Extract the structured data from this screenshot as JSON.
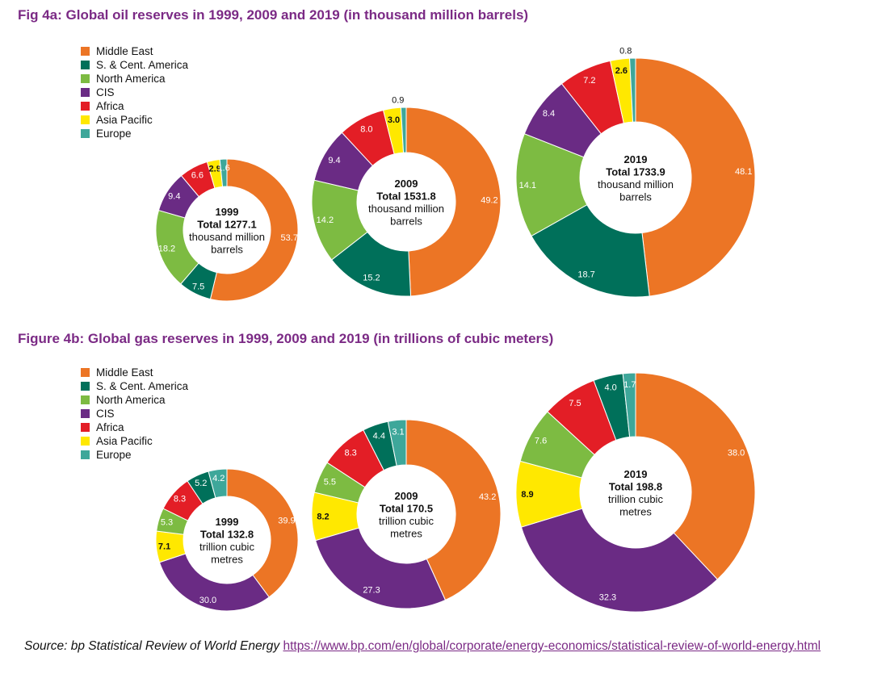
{
  "legend_colors": {
    "Middle East": "#ec7525",
    "S. & Cent. America": "#00705a",
    "North America": "#7dbb42",
    "CIS": "#6a2b84",
    "Africa": "#e31e26",
    "Asia Pacific": "#ffe800",
    "Europe": "#3ea79a"
  },
  "source": {
    "lead": "Source: bp Statistical Review of World Energy ",
    "link": "https://www.bp.com/en/global/corporate/energy-economics/statistical-review-of-world-energy.html"
  },
  "chart_data": [
    {
      "type": "pie",
      "title": "Fig 4a: Global oil reserves in 1999, 2009 and 2019 (in thousand million barrels)",
      "legend": [
        "Middle East",
        "S. & Cent. America",
        "North America",
        "CIS",
        "Africa",
        "Asia Pacific",
        "Europe"
      ],
      "donuts": [
        {
          "year": "1999",
          "total_label": "Total 1277.1",
          "unit_lines": [
            "thousand million",
            "barrels"
          ],
          "values": [
            53.7,
            7.5,
            18.2,
            9.4,
            6.6,
            2.9,
            1.6
          ]
        },
        {
          "year": "2009",
          "total_label": "Total 1531.8",
          "unit_lines": [
            "thousand million",
            "barrels"
          ],
          "values": [
            49.2,
            15.2,
            14.2,
            9.4,
            8.0,
            3.0,
            0.9
          ]
        },
        {
          "year": "2019",
          "total_label": "Total 1733.9",
          "unit_lines": [
            "thousand million",
            "barrels"
          ],
          "values": [
            48.1,
            18.7,
            14.1,
            8.4,
            7.2,
            2.6,
            0.8
          ]
        }
      ]
    },
    {
      "type": "pie",
      "title": "Figure 4b: Global gas reserves in 1999, 2009 and 2019 (in trillions of cubic meters)",
      "legend": [
        "Middle East",
        "S. & Cent. America",
        "North America",
        "CIS",
        "Africa",
        "Asia Pacific",
        "Europe"
      ],
      "donuts": [
        {
          "year": "1999",
          "total_label": "Total 132.8",
          "unit_lines": [
            "trillion cubic",
            "metres"
          ],
          "values": [
            39.9,
            30.0,
            7.1,
            5.3,
            8.3,
            5.2,
            4.2
          ],
          "order": [
            "Middle East",
            "CIS",
            "Asia Pacific",
            "North America",
            "Africa",
            "S. & Cent. America",
            "Europe"
          ]
        },
        {
          "year": "2009",
          "total_label": "Total 170.5",
          "unit_lines": [
            "trillion cubic",
            "metres"
          ],
          "values": [
            43.2,
            27.3,
            8.2,
            5.5,
            8.3,
            4.4,
            3.1
          ],
          "order": [
            "Middle East",
            "CIS",
            "Asia Pacific",
            "North America",
            "Africa",
            "S. & Cent. America",
            "Europe"
          ]
        },
        {
          "year": "2019",
          "total_label": "Total 198.8",
          "unit_lines": [
            "trillion cubic",
            "metres"
          ],
          "values": [
            38.0,
            32.3,
            8.9,
            7.6,
            7.5,
            4.0,
            1.7
          ],
          "order": [
            "Middle East",
            "CIS",
            "Asia Pacific",
            "North America",
            "Africa",
            "S. & Cent. America",
            "Europe"
          ]
        }
      ]
    }
  ]
}
